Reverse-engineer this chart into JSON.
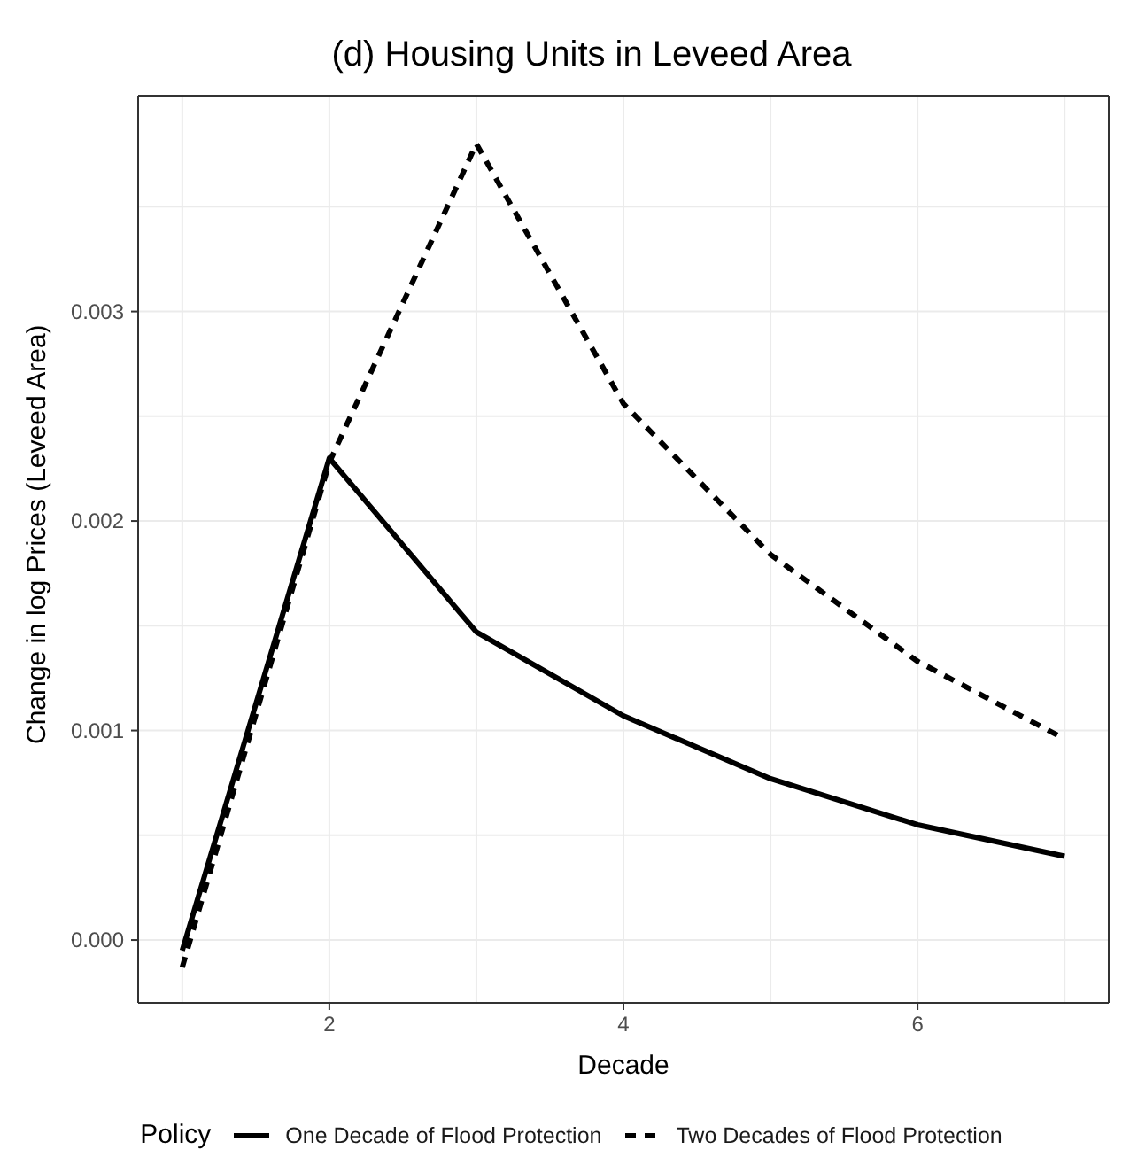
{
  "chart_data": {
    "type": "line",
    "title": "(d) Housing Units in Leveed Area",
    "xlabel": "Decade",
    "ylabel": "Change in log Prices (Leveed Area)",
    "legend_title": "Policy",
    "x": [
      1,
      2,
      3,
      4,
      5,
      6,
      7
    ],
    "series": [
      {
        "name": "One Decade of Flood Protection",
        "color": "#000000",
        "line_style": "solid",
        "values": [
          -5e-05,
          0.0023,
          0.00147,
          0.00107,
          0.00077,
          0.00055,
          0.0004
        ]
      },
      {
        "name": "Two Decades of Flood Protection",
        "color": "#000000",
        "line_style": "dashed",
        "values": [
          -0.00013,
          0.00228,
          0.0038,
          0.00256,
          0.00184,
          0.00133,
          0.00096
        ]
      }
    ],
    "xlim": [
      0.7,
      7.3
    ],
    "xticks": [
      {
        "value": 1,
        "label": null
      },
      2,
      {
        "value": 3,
        "label": null
      },
      4,
      {
        "value": 5,
        "label": null
      },
      6,
      {
        "value": 7,
        "label": null
      }
    ],
    "ylim": [
      -0.0003,
      0.00403
    ],
    "yticks": [
      "0.000",
      {
        "value": 0.0005,
        "label": null
      },
      {
        "value": 0.001,
        "label": "0.001"
      },
      {
        "value": 0.0015,
        "label": null
      },
      {
        "value": 0.002,
        "label": "0.002"
      },
      {
        "value": 0.0025,
        "label": null
      },
      {
        "value": 0.003,
        "label": "0.003"
      },
      {
        "value": 0.0035,
        "label": null
      }
    ],
    "grid": true,
    "legend": "bottom",
    "marker": "none"
  }
}
